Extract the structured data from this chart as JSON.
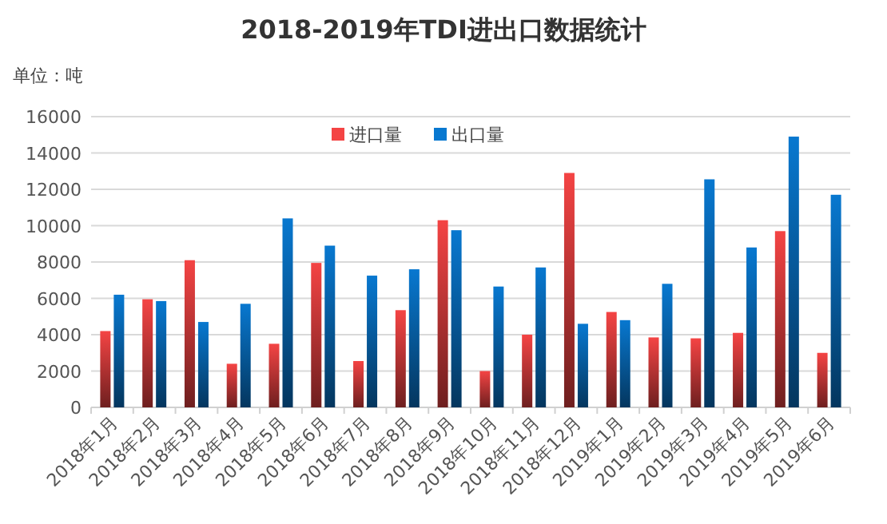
{
  "chart_data": {
    "type": "bar",
    "title": "2018-2019年TDI进出口数据统计",
    "ylabel": "单位：吨",
    "categories": [
      "2018年1月",
      "2018年2月",
      "2018年3月",
      "2018年4月",
      "2018年5月",
      "2018年6月",
      "2018年7月",
      "2018年8月",
      "2018年9月",
      "2018年10月",
      "2018年11月",
      "2018年12月",
      "2019年1月",
      "2019年2月",
      "2019年3月",
      "2019年4月",
      "2019年5月",
      "2019年6月"
    ],
    "series": [
      {
        "name": "进口量",
        "color": "#f44444",
        "values": [
          4200,
          5950,
          8100,
          2400,
          3500,
          7950,
          2550,
          5350,
          10300,
          2000,
          4000,
          12900,
          5250,
          3850,
          3800,
          4100,
          9700,
          3000
        ]
      },
      {
        "name": "出口量",
        "color": "#0878d0",
        "values": [
          6200,
          5850,
          4700,
          5700,
          10400,
          8900,
          7250,
          7600,
          9750,
          6650,
          7700,
          4600,
          4800,
          6800,
          12550,
          8800,
          14900,
          11700
        ]
      }
    ],
    "ylim": [
      0,
      16000
    ],
    "yticks": [
      0,
      2000,
      4000,
      6000,
      8000,
      10000,
      12000,
      14000,
      16000
    ],
    "grid": "y",
    "legend": "top"
  }
}
